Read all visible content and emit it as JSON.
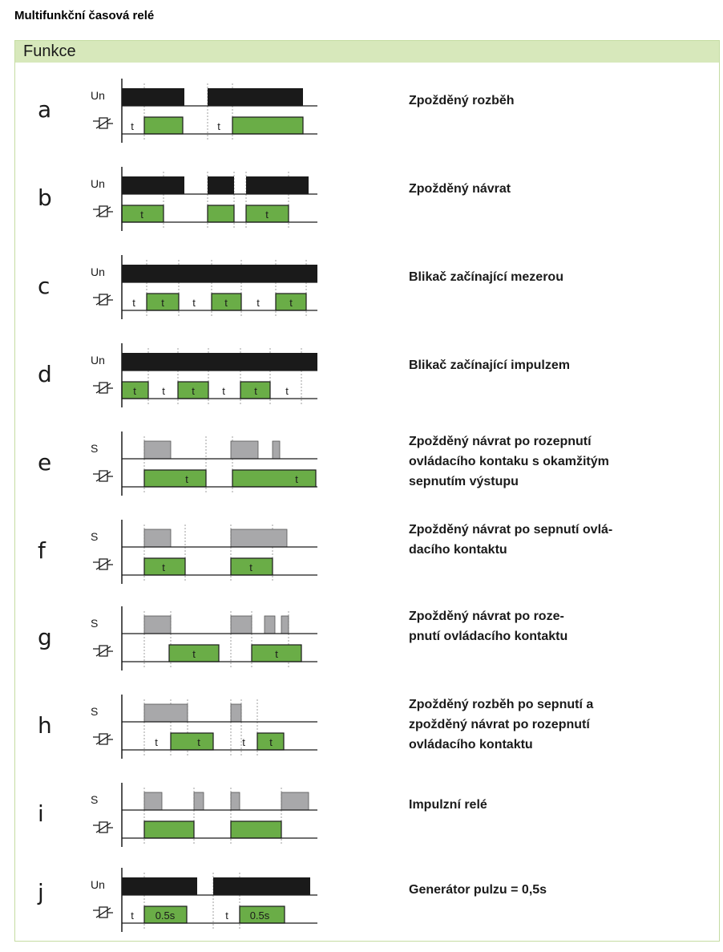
{
  "doc_title": "Multifunkční časová relé",
  "panel_title": "Funkce",
  "colors": {
    "green": "#6aad47",
    "black": "#1a1a1a",
    "gray": "#a8a8aa",
    "header_bg": "#d7e8bb"
  },
  "rows": [
    {
      "letter": "a",
      "top_label": "Un",
      "relay_symbol": "relay-coil-icon",
      "desc": "Zpožděný rozběh"
    },
    {
      "letter": "b",
      "top_label": "Un",
      "relay_symbol": "relay-coil-icon",
      "desc": "Zpožděný návrat"
    },
    {
      "letter": "c",
      "top_label": "Un",
      "relay_symbol": "relay-coil-icon",
      "desc": "Blikač začínající mezerou"
    },
    {
      "letter": "d",
      "top_label": "Un",
      "relay_symbol": "relay-coil-icon",
      "desc": "Blikač začínající impulzem"
    },
    {
      "letter": "e",
      "top_label": "S",
      "relay_symbol": "relay-coil-icon",
      "desc": "Zpožděný návrat po rozepnutí\novládacího kontaku s okamžitým\nsepnutím výstupu"
    },
    {
      "letter": "f",
      "top_label": "S",
      "relay_symbol": "relay-coil-icon",
      "desc": "Zpožděný návrat po sepnutí ovlá-\ndacího kontaktu"
    },
    {
      "letter": "g",
      "top_label": "S",
      "relay_symbol": "relay-coil-icon",
      "desc": "Zpožděný návrat po roze-\npnutí ovládacího kontaktu"
    },
    {
      "letter": "h",
      "top_label": "S",
      "relay_symbol": "relay-coil-icon",
      "desc": "Zpožděný rozběh po sepnutí a\nzpožděný návrat po rozepnutí\novládacího kontaktu"
    },
    {
      "letter": "i",
      "top_label": "S",
      "relay_symbol": "relay-coil-icon",
      "desc": "Impulzní relé"
    },
    {
      "letter": "j",
      "top_label": "Un",
      "relay_symbol": "relay-coil-icon",
      "desc": "Generátor pulzu = 0,5s"
    }
  ],
  "timing_labels": {
    "t": "t",
    "pulse": "0.5s"
  }
}
